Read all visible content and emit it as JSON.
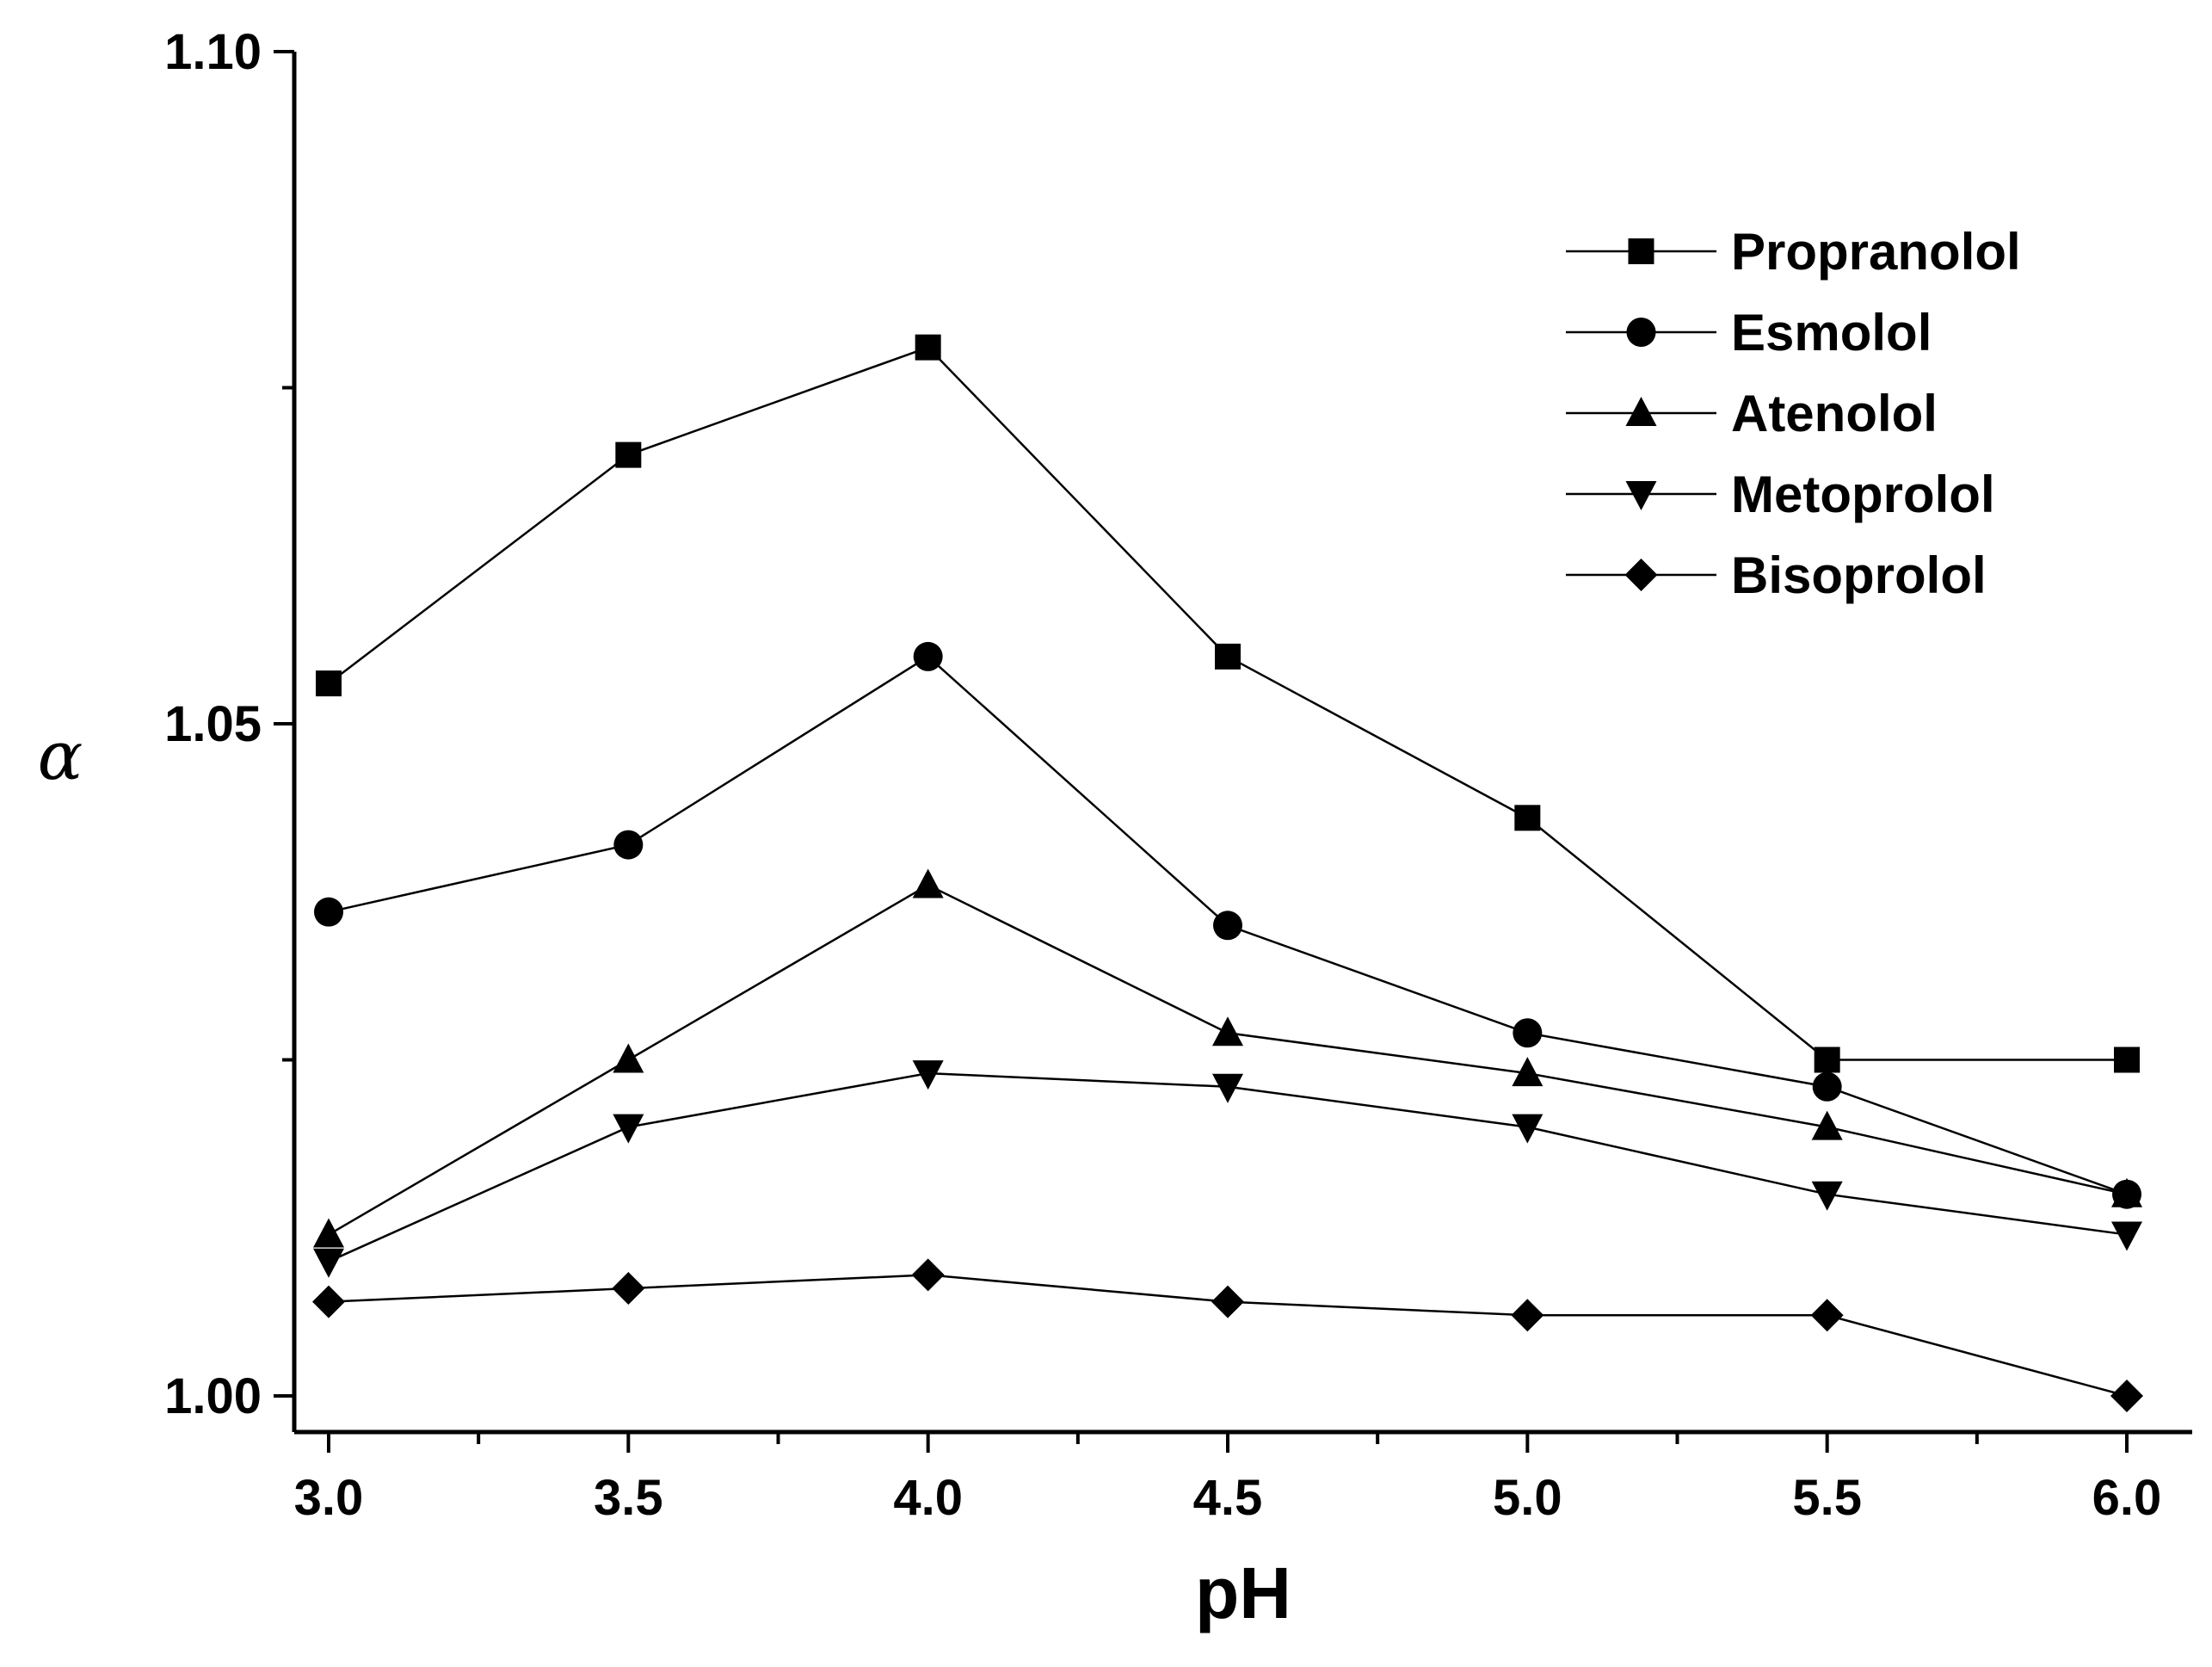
{
  "chart_data": {
    "type": "line",
    "title": "",
    "xlabel": "pH",
    "ylabel": "α",
    "xlim": [
      3.0,
      6.0
    ],
    "ylim": [
      1.0,
      1.1
    ],
    "x": [
      3.0,
      3.5,
      4.0,
      4.5,
      5.0,
      5.5,
      6.0
    ],
    "x_ticks": [
      "3.0",
      "3.5",
      "4.0",
      "4.5",
      "5.0",
      "5.5",
      "6.0"
    ],
    "y_ticks": [
      "1.00",
      "1.05",
      "1.10"
    ],
    "grid": false,
    "legend_position": "top-right",
    "series": [
      {
        "name": "Propranolol",
        "marker": "square",
        "values": [
          1.053,
          1.07,
          1.078,
          1.055,
          1.043,
          1.025,
          1.025
        ]
      },
      {
        "name": "Esmolol",
        "marker": "circle",
        "values": [
          1.036,
          1.041,
          1.055,
          1.035,
          1.027,
          1.023,
          1.015
        ]
      },
      {
        "name": "Atenolol",
        "marker": "triangle-up",
        "values": [
          1.012,
          1.025,
          1.038,
          1.027,
          1.024,
          1.02,
          1.015
        ]
      },
      {
        "name": "Metoprolol",
        "marker": "triangle-down",
        "values": [
          1.01,
          1.02,
          1.024,
          1.023,
          1.02,
          1.015,
          1.012
        ]
      },
      {
        "name": "Bisoprolol",
        "marker": "diamond",
        "values": [
          1.007,
          1.008,
          1.009,
          1.007,
          1.006,
          1.006,
          1.0
        ]
      }
    ]
  }
}
